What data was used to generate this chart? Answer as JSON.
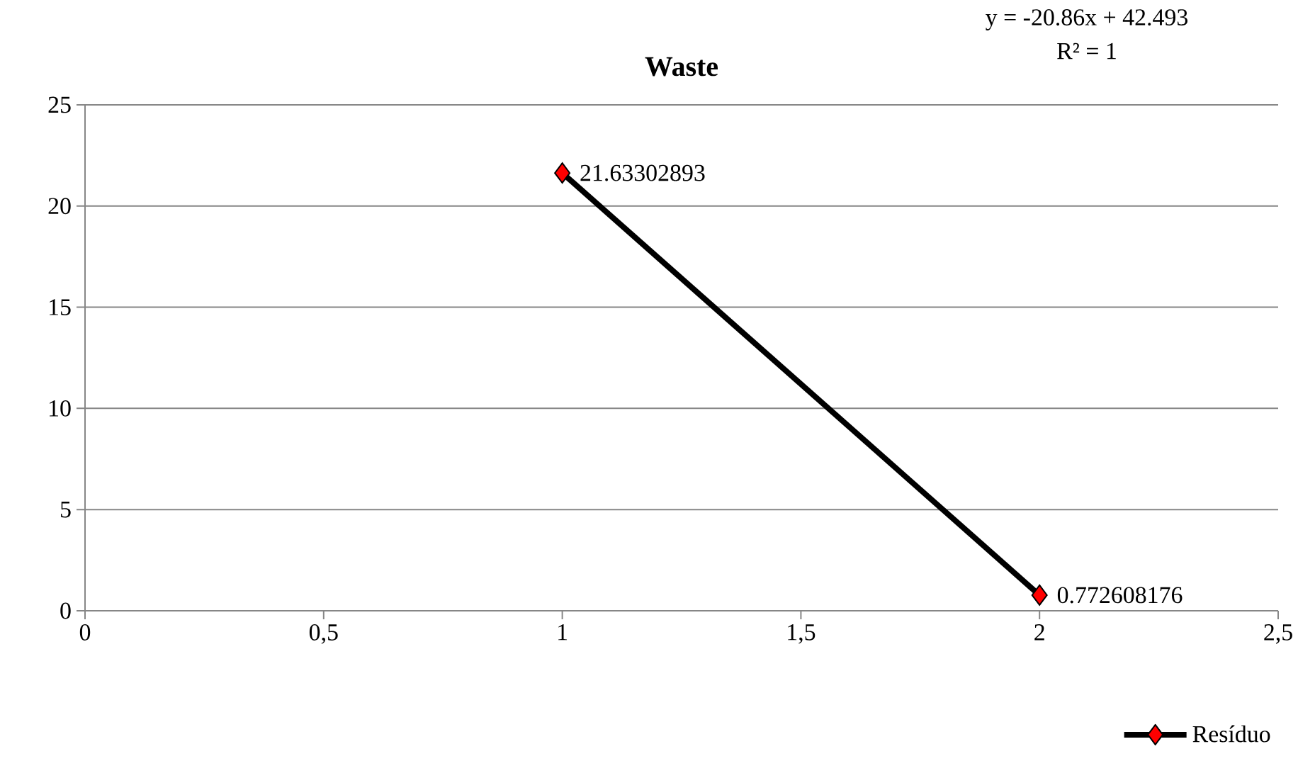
{
  "chart_data": {
    "type": "line",
    "title": "Waste",
    "x": [
      1,
      2
    ],
    "series": [
      {
        "name": "Resíduo",
        "color": "#000000",
        "colors": [
          "#ff0000",
          "#ff0000"
        ],
        "values": [
          21.63302893,
          0.772608176
        ]
      }
    ],
    "xlim": [
      0,
      2.5
    ],
    "xticks": [
      0,
      {
        "value": 0.5,
        "label": "0,5"
      },
      1,
      {
        "value": 1.5,
        "label": "1,5"
      },
      2,
      {
        "value": 2.5,
        "label": "2,5"
      }
    ],
    "ylim": [
      0,
      25
    ],
    "yticks": [
      0,
      5,
      10,
      15,
      20,
      25
    ],
    "grid": "y",
    "legend": "bottom right",
    "marker": "diamond",
    "line_style": "solid",
    "data_labels": true,
    "annotations": [
      "y = -20.86x + 42.493",
      "R² = 1"
    ]
  }
}
